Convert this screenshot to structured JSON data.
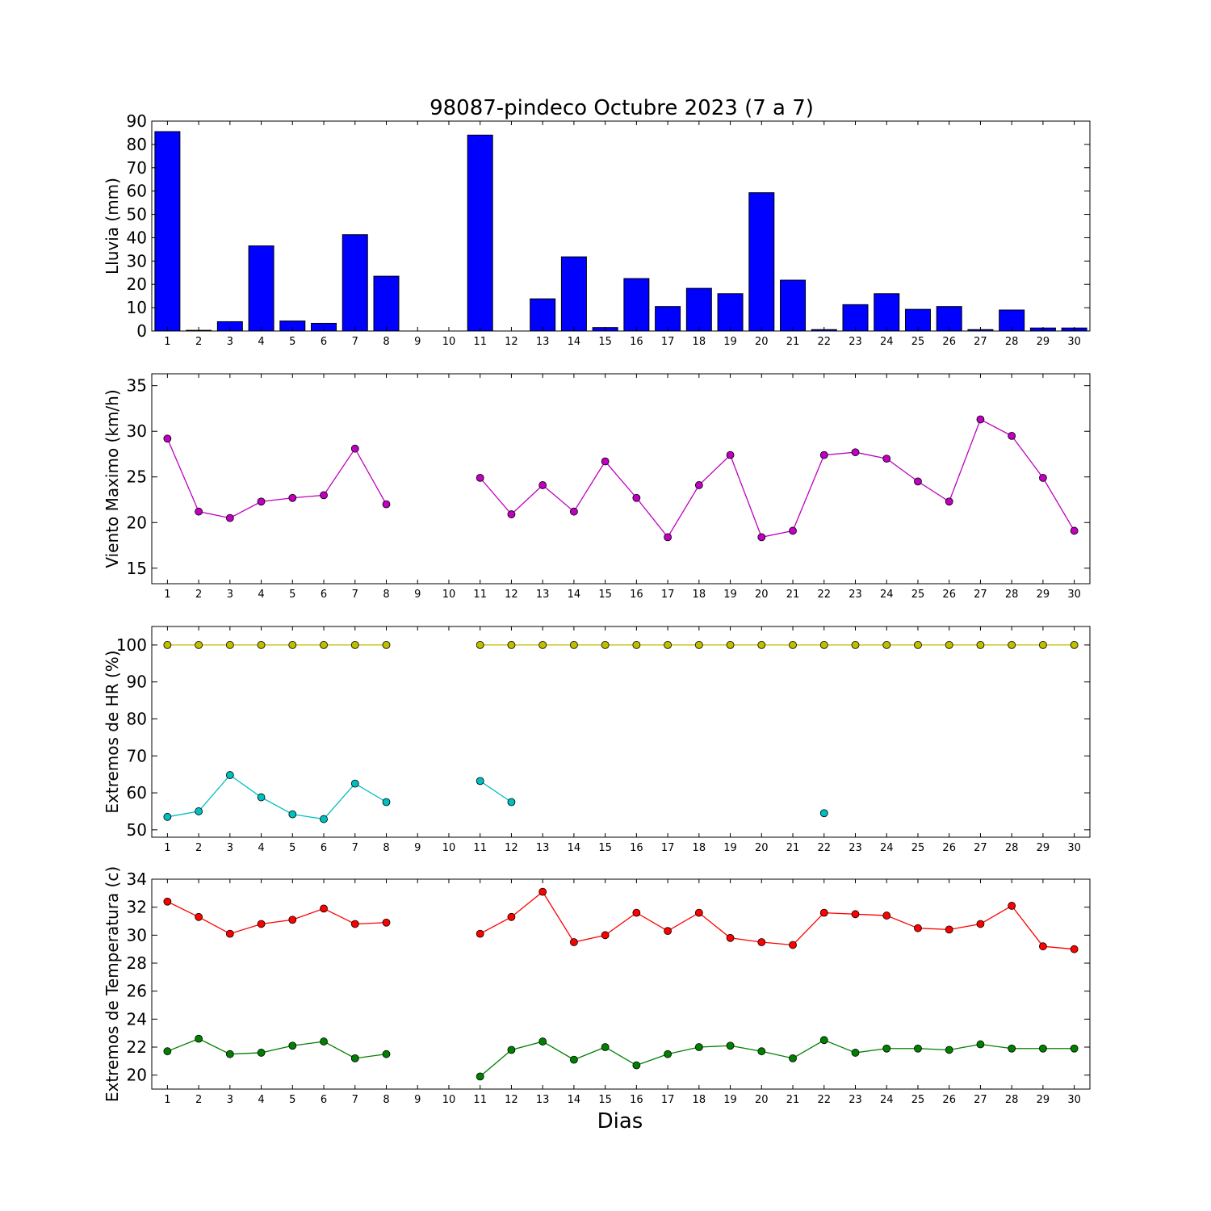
{
  "title": "98087-pindeco Octubre 2023  (7 a 7)",
  "xlabel": "Dias",
  "chart_data": [
    {
      "type": "bar",
      "ylabel": "Lluvia (mm)",
      "ylim": [
        0,
        90
      ],
      "yticks": [
        0,
        10,
        20,
        30,
        40,
        50,
        60,
        70,
        80,
        90
      ],
      "x": [
        1,
        2,
        3,
        4,
        5,
        6,
        7,
        8,
        9,
        10,
        11,
        12,
        13,
        14,
        15,
        16,
        17,
        18,
        19,
        20,
        21,
        22,
        23,
        24,
        25,
        26,
        27,
        28,
        29,
        30
      ],
      "xlim": [
        0.5,
        30.5
      ],
      "grid": false,
      "series": [
        {
          "color": "#0000ff",
          "values": [
            85.5,
            0.3,
            4.0,
            36.5,
            4.3,
            3.3,
            41.3,
            23.5,
            0,
            0,
            84.0,
            0,
            13.8,
            31.8,
            1.5,
            22.5,
            10.5,
            18.3,
            16.0,
            59.3,
            21.8,
            0.6,
            11.3,
            16.0,
            9.3,
            10.5,
            0.6,
            9.0,
            1.3,
            1.3
          ]
        }
      ]
    },
    {
      "type": "line",
      "ylabel": "Viento Maximo (km/h)",
      "ylim": [
        13.3,
        36.3
      ],
      "yticks": [
        15,
        20,
        25,
        30,
        35
      ],
      "x": [
        1,
        2,
        3,
        4,
        5,
        6,
        7,
        8,
        9,
        10,
        11,
        12,
        13,
        14,
        15,
        16,
        17,
        18,
        19,
        20,
        21,
        22,
        23,
        24,
        25,
        26,
        27,
        28,
        29,
        30
      ],
      "xlim": [
        0.5,
        30.5
      ],
      "grid": false,
      "series": [
        {
          "color": "#bf00bf",
          "values": [
            29.2,
            21.2,
            20.5,
            22.3,
            22.7,
            23.0,
            28.1,
            22.0,
            null,
            null,
            24.9,
            20.9,
            24.1,
            21.2,
            26.7,
            22.7,
            18.4,
            24.1,
            27.4,
            18.4,
            19.1,
            27.4,
            27.7,
            27.0,
            24.5,
            22.3,
            31.3,
            29.5,
            24.9,
            19.1
          ]
        }
      ]
    },
    {
      "type": "line",
      "ylabel": "Extremos de HR (%)",
      "ylim": [
        48,
        105
      ],
      "yticks": [
        50,
        60,
        70,
        80,
        90,
        100
      ],
      "x": [
        1,
        2,
        3,
        4,
        5,
        6,
        7,
        8,
        9,
        10,
        11,
        12,
        13,
        14,
        15,
        16,
        17,
        18,
        19,
        20,
        21,
        22,
        23,
        24,
        25,
        26,
        27,
        28,
        29,
        30
      ],
      "xlim": [
        0.5,
        30.5
      ],
      "grid": false,
      "series": [
        {
          "color": "#bfbf00",
          "values": [
            100,
            100,
            100,
            100,
            100,
            100,
            100,
            100,
            null,
            null,
            100,
            100,
            100,
            100,
            100,
            100,
            100,
            100,
            100,
            100,
            100,
            100,
            100,
            100,
            100,
            100,
            100,
            100,
            100,
            100
          ]
        },
        {
          "color": "#00bfbf",
          "values": [
            53.5,
            55.0,
            64.8,
            58.8,
            54.2,
            52.9,
            62.5,
            57.5,
            null,
            null,
            63.2,
            57.5,
            null,
            null,
            null,
            null,
            null,
            null,
            null,
            null,
            null,
            54.5,
            null,
            null,
            null,
            null,
            null,
            null,
            null,
            null
          ]
        }
      ]
    },
    {
      "type": "line",
      "ylabel": "Extremos de Temperatura (c)",
      "ylim": [
        19,
        34
      ],
      "yticks": [
        20,
        22,
        24,
        26,
        28,
        30,
        32,
        34
      ],
      "x": [
        1,
        2,
        3,
        4,
        5,
        6,
        7,
        8,
        9,
        10,
        11,
        12,
        13,
        14,
        15,
        16,
        17,
        18,
        19,
        20,
        21,
        22,
        23,
        24,
        25,
        26,
        27,
        28,
        29,
        30
      ],
      "xlim": [
        0.5,
        30.5
      ],
      "grid": false,
      "series": [
        {
          "color": "#ff0000",
          "values": [
            32.4,
            31.3,
            30.1,
            30.8,
            31.1,
            31.9,
            30.8,
            30.9,
            null,
            null,
            30.1,
            31.3,
            33.1,
            29.5,
            30.0,
            31.6,
            30.3,
            31.6,
            29.8,
            29.5,
            29.3,
            31.6,
            31.5,
            31.4,
            30.5,
            30.4,
            30.8,
            32.1,
            29.2,
            29.0
          ]
        },
        {
          "color": "#008000",
          "values": [
            21.7,
            22.6,
            21.5,
            21.6,
            22.1,
            22.4,
            21.2,
            21.5,
            null,
            null,
            19.9,
            21.8,
            22.4,
            21.1,
            22.0,
            20.7,
            21.5,
            22.0,
            22.1,
            21.7,
            21.2,
            22.5,
            21.6,
            21.9,
            21.9,
            21.8,
            22.2,
            21.9,
            21.9,
            21.9
          ]
        }
      ]
    }
  ]
}
